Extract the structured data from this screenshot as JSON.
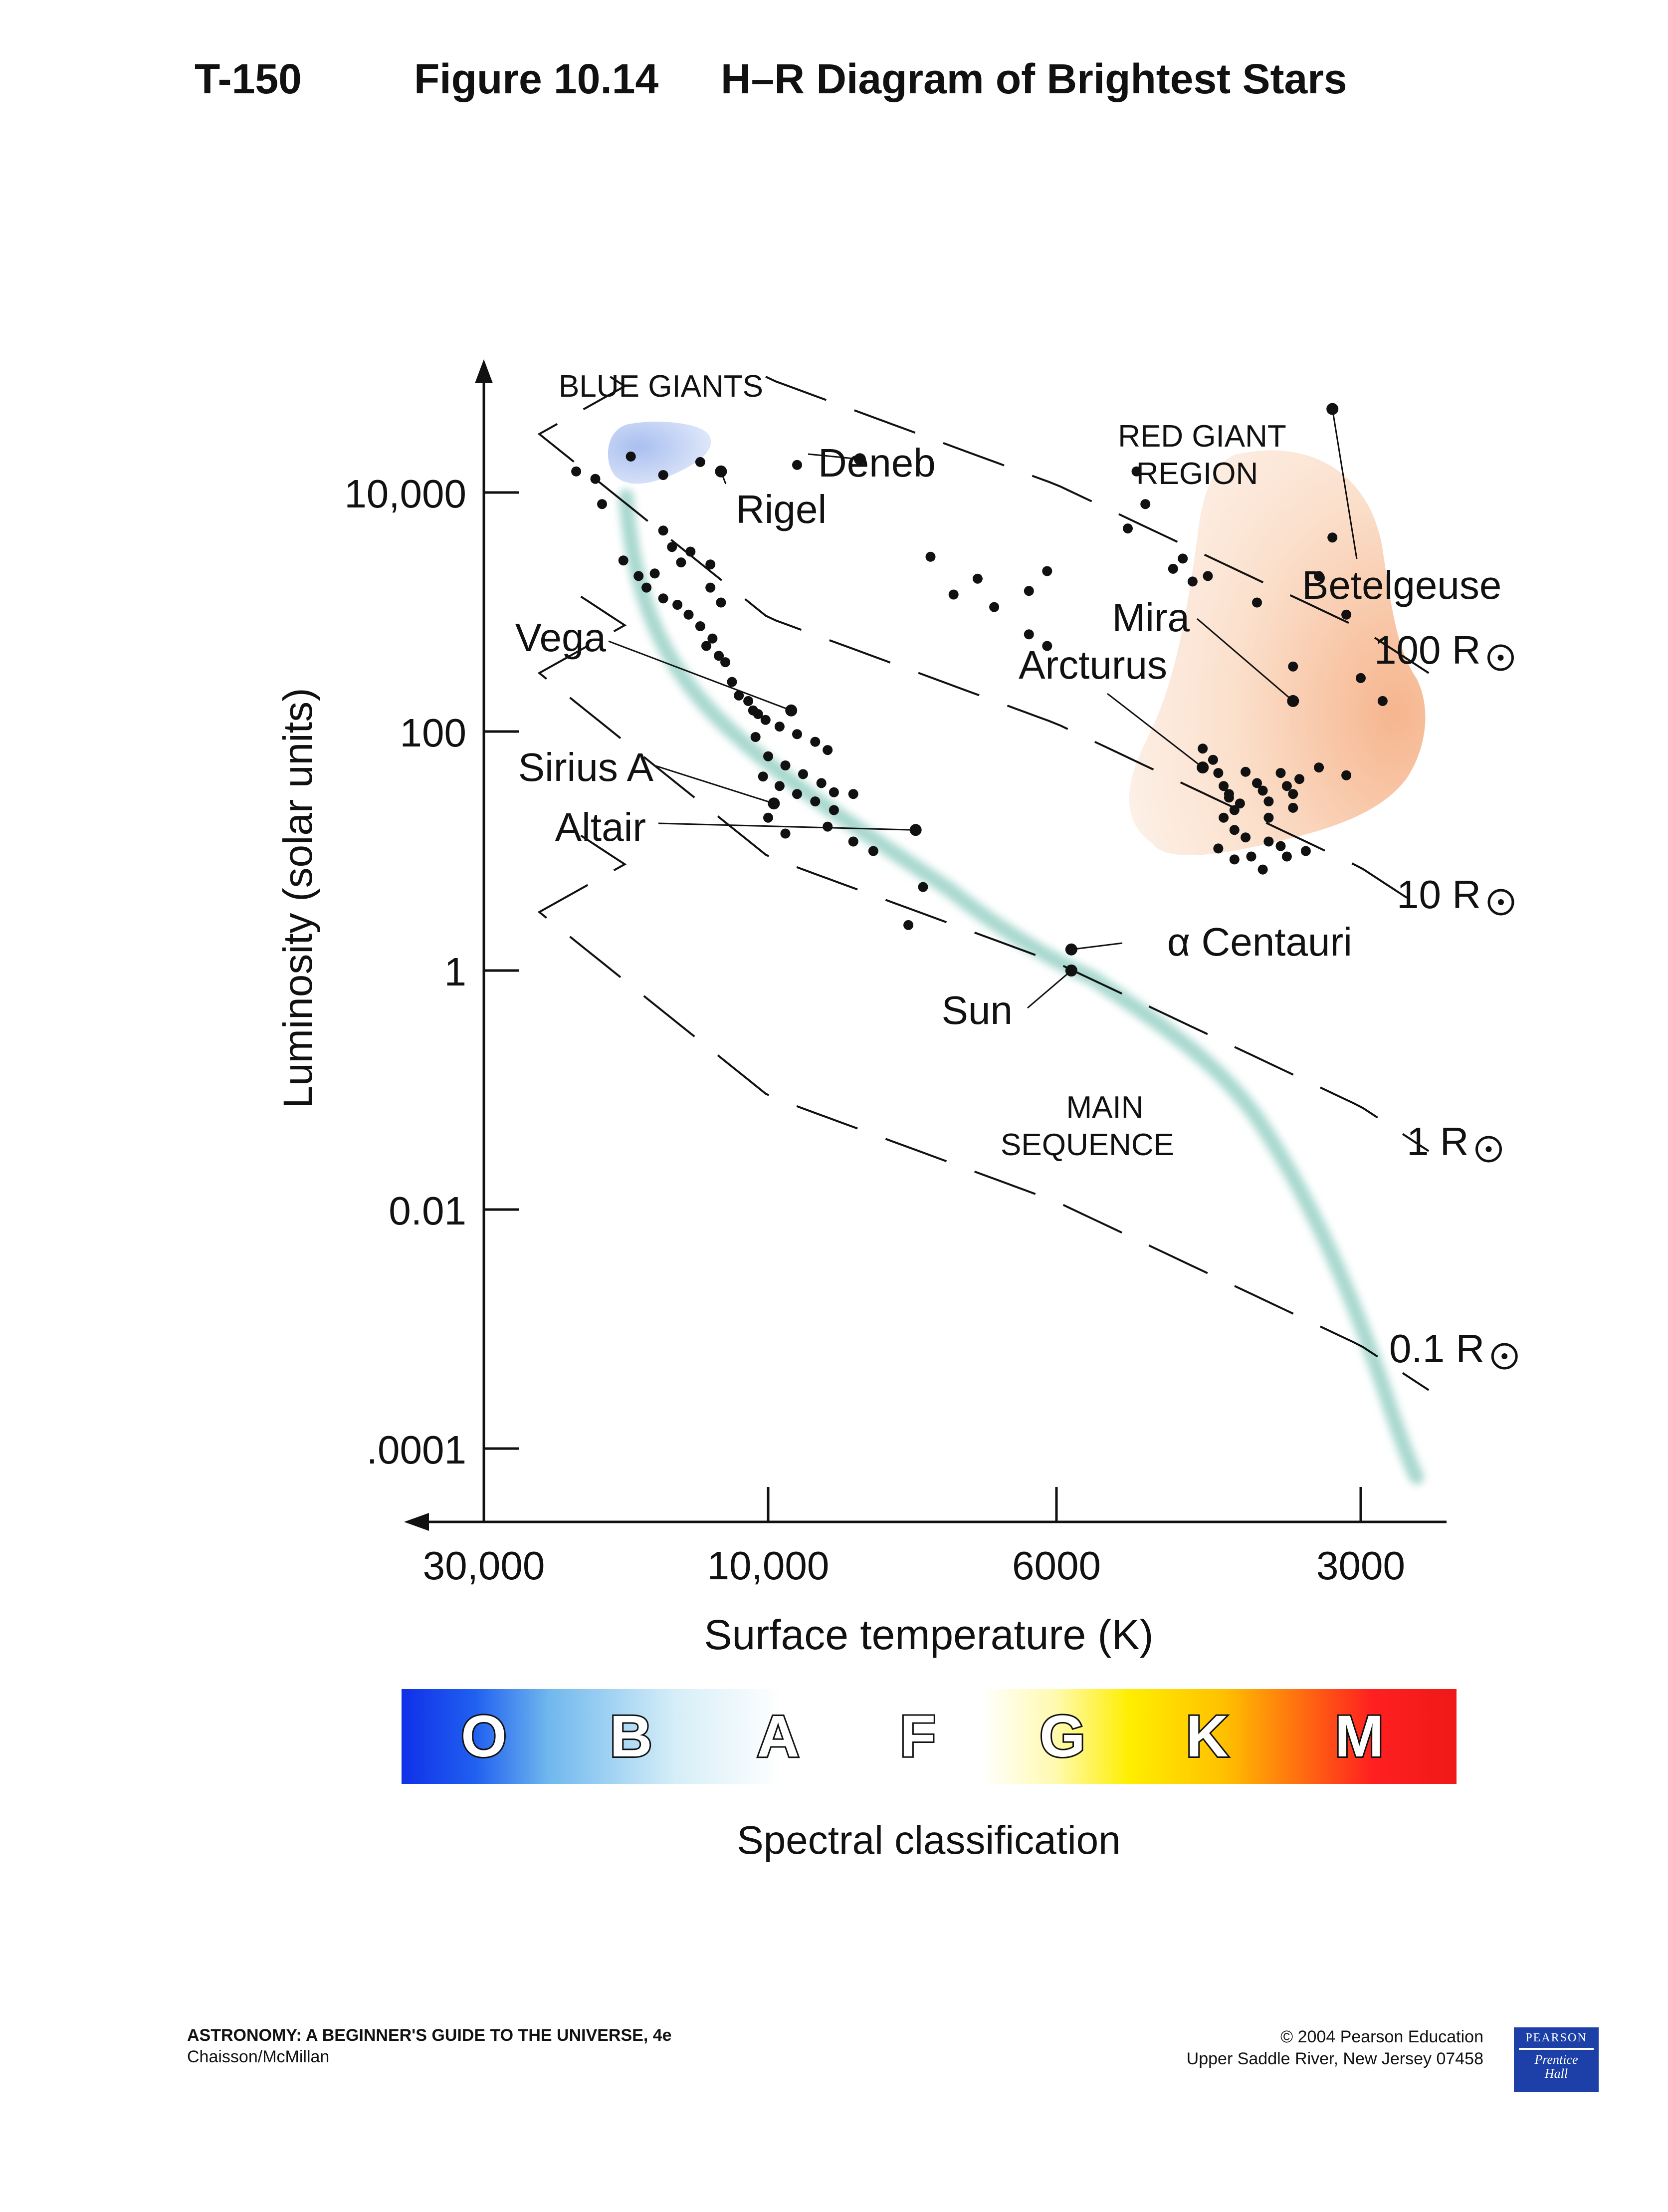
{
  "header": {
    "code": "T-150",
    "figure": "Figure 10.14",
    "title": "H–R Diagram of Brightest Stars"
  },
  "footer": {
    "book": "ASTRONOMY: A BEGINNER'S GUIDE TO THE UNIVERSE, 4e",
    "authors": "Chaisson/McMillan",
    "copyright": "© 2004 Pearson Education",
    "address": "Upper Saddle River, New Jersey 07458",
    "logo_top": "PEARSON",
    "logo_bottom_1": "Prentice",
    "logo_bottom_2": "Hall"
  },
  "chart_data": {
    "type": "scatter",
    "ylabel": "Luminosity (solar units)",
    "xlabel": "Surface temperature (K)",
    "x_scale": "log, reversed",
    "y_scale": "log",
    "x_ticks": [
      {
        "value": 30000,
        "label": "30,000"
      },
      {
        "value": 10000,
        "label": "10,000"
      },
      {
        "value": 6000,
        "label": "6000"
      },
      {
        "value": 3000,
        "label": "3000"
      }
    ],
    "y_ticks": [
      {
        "value": 10000,
        "label": "10,000"
      },
      {
        "value": 100,
        "label": "100"
      },
      {
        "value": 1,
        "label": "1"
      },
      {
        "value": 0.01,
        "label": "0.01"
      },
      {
        "value": 0.0001,
        "label": ".0001"
      }
    ],
    "region_labels": {
      "blue_giants": "BLUE GIANTS",
      "red_giant_1": "RED GIANT",
      "red_giant_2": "REGION",
      "main_seq_1": "MAIN",
      "main_seq_2": "SEQUENCE"
    },
    "radius_lines": [
      {
        "label": "100 R",
        "r": 100
      },
      {
        "label": "10 R",
        "r": 10
      },
      {
        "label": "1 R",
        "r": 1
      },
      {
        "label": "0.1 R",
        "r": 0.1
      }
    ],
    "named_stars": [
      {
        "name": "Deneb",
        "temp": 8500,
        "lum": 19000
      },
      {
        "name": "Rigel",
        "temp": 12000,
        "lum": 15000
      },
      {
        "name": "Betelgeuse",
        "temp": 3200,
        "lum": 50000
      },
      {
        "name": "Mira",
        "temp": 3500,
        "lum": 180
      },
      {
        "name": "Arcturus",
        "temp": 4300,
        "lum": 50
      },
      {
        "name": "Vega",
        "temp": 9600,
        "lum": 150
      },
      {
        "name": "Sirius A",
        "temp": 9900,
        "lum": 25
      },
      {
        "name": "Altair",
        "temp": 7700,
        "lum": 15
      },
      {
        "name": "α Centauri",
        "temp": 5800,
        "lum": 1.5
      },
      {
        "name": "Sun",
        "temp": 5800,
        "lum": 1
      }
    ],
    "points": [
      [
        21000,
        15000
      ],
      [
        19500,
        13000
      ],
      [
        17000,
        20000
      ],
      [
        15000,
        14000
      ],
      [
        13000,
        18000
      ],
      [
        9500,
        17000
      ],
      [
        19000,
        8000
      ],
      [
        15000,
        4800
      ],
      [
        14500,
        3500
      ],
      [
        14000,
        2600
      ],
      [
        13500,
        3200
      ],
      [
        12500,
        2500
      ],
      [
        17500,
        2700
      ],
      [
        16500,
        2000
      ],
      [
        16000,
        1600
      ],
      [
        15500,
        2100
      ],
      [
        15000,
        1300
      ],
      [
        14200,
        1150
      ],
      [
        13600,
        950
      ],
      [
        13000,
        760
      ],
      [
        12700,
        520
      ],
      [
        12400,
        600
      ],
      [
        12100,
        430
      ],
      [
        11800,
        380
      ],
      [
        12500,
        1600
      ],
      [
        12000,
        1200
      ],
      [
        11500,
        260
      ],
      [
        11200,
        200
      ],
      [
        10800,
        180
      ],
      [
        10600,
        150
      ],
      [
        10400,
        140
      ],
      [
        10100,
        125
      ],
      [
        9800,
        110
      ],
      [
        9500,
        95
      ],
      [
        9200,
        82
      ],
      [
        9000,
        70
      ],
      [
        10500,
        90
      ],
      [
        10000,
        62
      ],
      [
        9700,
        52
      ],
      [
        9400,
        44
      ],
      [
        9100,
        37
      ],
      [
        8900,
        31
      ],
      [
        10200,
        42
      ],
      [
        9800,
        35
      ],
      [
        9500,
        30
      ],
      [
        9200,
        26
      ],
      [
        8900,
        22
      ],
      [
        8600,
        30
      ],
      [
        9000,
        16
      ],
      [
        8600,
        12
      ],
      [
        8300,
        10
      ],
      [
        10000,
        19
      ],
      [
        9700,
        14
      ],
      [
        7600,
        5
      ],
      [
        7800,
        2.4
      ],
      [
        7500,
        2900
      ],
      [
        7200,
        1400
      ],
      [
        6900,
        1900
      ],
      [
        6700,
        1100
      ],
      [
        6300,
        1500
      ],
      [
        6100,
        2200
      ],
      [
        5000,
        15000
      ],
      [
        5100,
        5000
      ],
      [
        4500,
        2800
      ],
      [
        4400,
        1800
      ],
      [
        6300,
        650
      ],
      [
        6100,
        520
      ],
      [
        4900,
        8000
      ],
      [
        4600,
        2300
      ],
      [
        4250,
        2000
      ],
      [
        3800,
        1200
      ],
      [
        3500,
        350
      ],
      [
        3300,
        2000
      ],
      [
        3200,
        4200
      ],
      [
        3100,
        950
      ],
      [
        2800,
        180
      ],
      [
        3000,
        280
      ],
      [
        3300,
        50
      ],
      [
        3100,
        43
      ],
      [
        4300,
        72
      ],
      [
        4200,
        58
      ],
      [
        4150,
        45
      ],
      [
        4100,
        35
      ],
      [
        4050,
        28
      ],
      [
        4000,
        22
      ],
      [
        3900,
        46
      ],
      [
        3800,
        37
      ],
      [
        3750,
        32
      ],
      [
        3700,
        26
      ],
      [
        3600,
        45
      ],
      [
        3550,
        35
      ],
      [
        3500,
        30
      ],
      [
        3450,
        40
      ],
      [
        4100,
        19
      ],
      [
        4000,
        15
      ],
      [
        3900,
        13
      ],
      [
        3700,
        12
      ],
      [
        3600,
        11
      ],
      [
        3400,
        10
      ],
      [
        4150,
        10.5
      ],
      [
        4000,
        8.5
      ],
      [
        3850,
        9
      ],
      [
        4050,
        30
      ],
      [
        3950,
        25
      ],
      [
        3700,
        19
      ],
      [
        3500,
        23
      ],
      [
        3750,
        7
      ],
      [
        3550,
        9
      ]
    ]
  }
}
